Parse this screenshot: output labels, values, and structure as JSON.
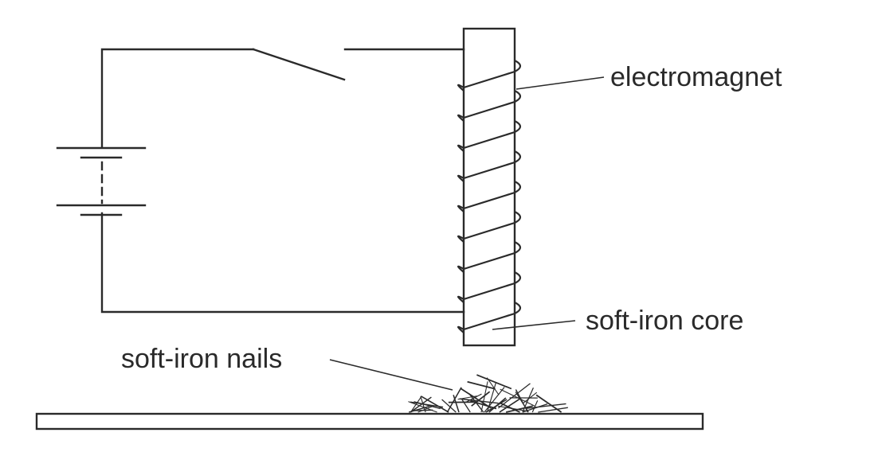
{
  "labels": {
    "electromagnet": "electromagnet",
    "soft_iron_core": "soft-iron core",
    "soft_iron_nails": "soft-iron nails"
  },
  "colors": {
    "line": "#2a2a2a",
    "background": "#ffffff"
  }
}
